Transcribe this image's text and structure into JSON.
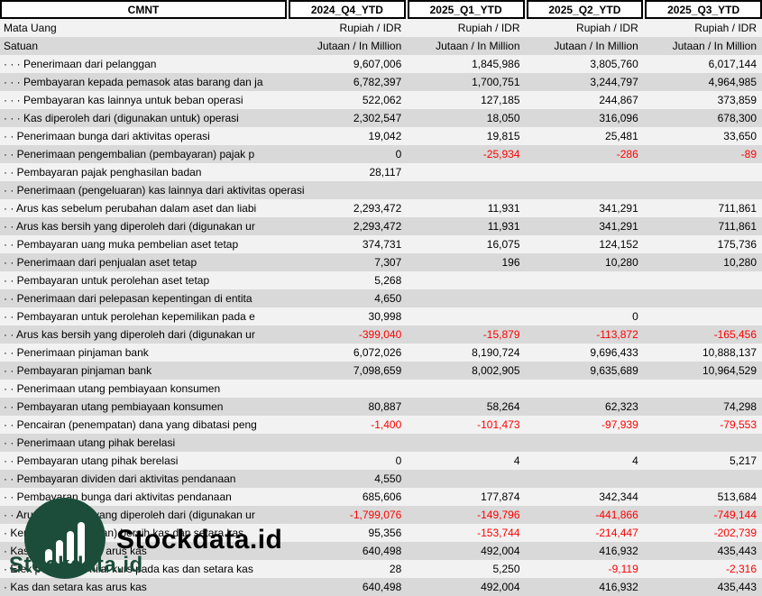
{
  "header": {
    "columns": [
      "CMNT",
      "2024_Q4_YTD",
      "2025_Q1_YTD",
      "2025_Q2_YTD",
      "2025_Q3_YTD"
    ]
  },
  "meta_rows": [
    {
      "label": "Mata Uang",
      "values": [
        "Rupiah / IDR",
        "Rupiah / IDR",
        "Rupiah / IDR",
        "Rupiah / IDR"
      ]
    },
    {
      "label": "Satuan",
      "values": [
        "Jutaan / In Million",
        "Jutaan / In Million",
        "Jutaan / In Million",
        "Jutaan / In Million"
      ]
    }
  ],
  "rows": [
    {
      "label": "· · · Penerimaan dari pelanggan",
      "values": [
        "9,607,006",
        "1,845,986",
        "3,805,760",
        "6,017,144"
      ]
    },
    {
      "label": "· · · Pembayaran kepada pemasok atas barang dan ja",
      "values": [
        "6,782,397",
        "1,700,751",
        "3,244,797",
        "4,964,985"
      ]
    },
    {
      "label": "· · · Pembayaran kas lainnya untuk beban operasi",
      "values": [
        "522,062",
        "127,185",
        "244,867",
        "373,859"
      ]
    },
    {
      "label": "· · · Kas diperoleh dari (digunakan untuk) operasi",
      "values": [
        "2,302,547",
        "18,050",
        "316,096",
        "678,300"
      ]
    },
    {
      "label": "· · Penerimaan bunga dari aktivitas operasi",
      "values": [
        "19,042",
        "19,815",
        "25,481",
        "33,650"
      ]
    },
    {
      "label": "· · Penerimaan pengembalian (pembayaran) pajak p",
      "values": [
        "0",
        "-25,934",
        "-286",
        "-89"
      ]
    },
    {
      "label": "· · Pembayaran pajak penghasilan badan",
      "values": [
        "28,117",
        "",
        "",
        ""
      ]
    },
    {
      "label": "· · Penerimaan (pengeluaran) kas lainnya dari aktivitas operasi",
      "values": [
        "",
        "",
        "",
        ""
      ]
    },
    {
      "label": "· · Arus kas sebelum perubahan dalam aset dan liabi",
      "values": [
        "2,293,472",
        "11,931",
        "341,291",
        "711,861"
      ]
    },
    {
      "label": "· · Arus kas bersih yang diperoleh dari (digunakan ur",
      "values": [
        "2,293,472",
        "11,931",
        "341,291",
        "711,861"
      ]
    },
    {
      "label": "· · Pembayaran uang muka pembelian aset tetap",
      "values": [
        "374,731",
        "16,075",
        "124,152",
        "175,736"
      ]
    },
    {
      "label": "· · Penerimaan dari penjualan aset tetap",
      "values": [
        "7,307",
        "196",
        "10,280",
        "10,280"
      ]
    },
    {
      "label": "· · Pembayaran untuk perolehan aset tetap",
      "values": [
        "5,268",
        "",
        "",
        ""
      ]
    },
    {
      "label": "· · Penerimaan dari pelepasan kepentingan di entita",
      "values": [
        "4,650",
        "",
        "",
        ""
      ]
    },
    {
      "label": "· · Pembayaran untuk perolehan kepemilikan pada e",
      "values": [
        "30,998",
        "",
        "0",
        ""
      ]
    },
    {
      "label": "· · Arus kas bersih yang diperoleh dari (digunakan ur",
      "values": [
        "-399,040",
        "-15,879",
        "-113,872",
        "-165,456"
      ]
    },
    {
      "label": "· · Penerimaan pinjaman bank",
      "values": [
        "6,072,026",
        "8,190,724",
        "9,696,433",
        "10,888,137"
      ]
    },
    {
      "label": "· · Pembayaran pinjaman bank",
      "values": [
        "7,098,659",
        "8,002,905",
        "9,635,689",
        "10,964,529"
      ]
    },
    {
      "label": "· · Penerimaan utang pembiayaan konsumen",
      "values": [
        "",
        "",
        "",
        ""
      ]
    },
    {
      "label": "· · Pembayaran utang pembiayaan konsumen",
      "values": [
        "80,887",
        "58,264",
        "62,323",
        "74,298"
      ]
    },
    {
      "label": "· · Pencairan (penempatan) dana yang dibatasi peng",
      "values": [
        "-1,400",
        "-101,473",
        "-97,939",
        "-79,553"
      ]
    },
    {
      "label": "· · Penerimaan utang pihak berelasi",
      "values": [
        "",
        "",
        "",
        ""
      ]
    },
    {
      "label": "· · Pembayaran utang pihak berelasi",
      "values": [
        "0",
        "4",
        "4",
        "5,217"
      ]
    },
    {
      "label": "· · Pembayaran dividen dari aktivitas pendanaan",
      "values": [
        "4,550",
        "",
        "",
        ""
      ]
    },
    {
      "label": "· · Pembayaran bunga dari aktivitas pendanaan",
      "values": [
        "685,606",
        "177,874",
        "342,344",
        "513,684"
      ]
    },
    {
      "label": "· · Arus kas bersih yang diperoleh dari (digunakan ur",
      "values": [
        "-1,799,076",
        "-149,796",
        "-441,866",
        "-749,144"
      ]
    },
    {
      "label": "· Kenaikan (penurunan) bersih kas dan setara kas",
      "values": [
        "95,356",
        "-153,744",
        "-214,447",
        "-202,739"
      ]
    },
    {
      "label": "· Kas dan setara kas arus kas",
      "values": [
        "640,498",
        "492,004",
        "416,932",
        "435,443"
      ]
    },
    {
      "label": "· Efek perubahan nilai kurs pada kas dan setara kas",
      "values": [
        "28",
        "5,250",
        "-9,119",
        "-2,316"
      ]
    },
    {
      "label": "· Kas dan setara kas arus kas",
      "values": [
        "640,498",
        "492,004",
        "416,932",
        "435,443"
      ]
    }
  ],
  "watermark": {
    "brand_large": "Stockdata.id",
    "brand_small": "Stockdata.id"
  },
  "colors": {
    "negative": "#FF0000",
    "row_dark": "#D9D9D9",
    "row_light": "#F2F2F2",
    "brand_green": "#1C4D3A"
  }
}
